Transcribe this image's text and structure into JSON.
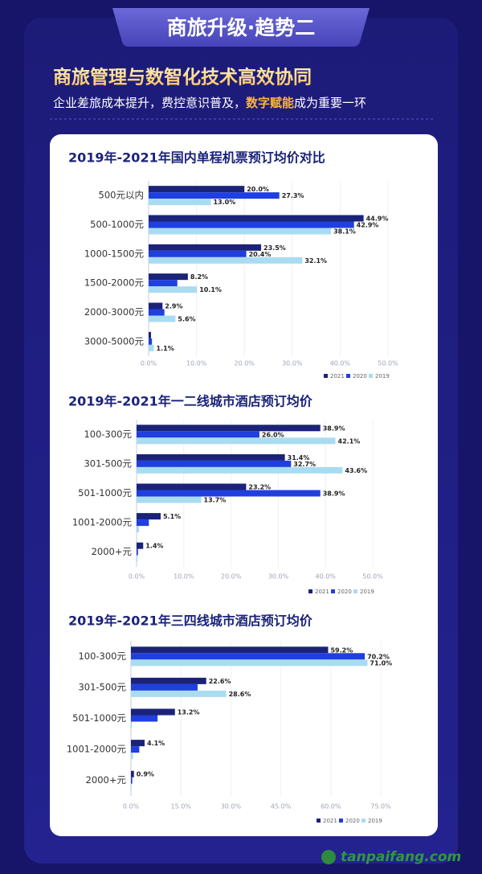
{
  "header": {
    "tab": "商旅升级·趋势二",
    "title": "商旅管理与数智化技术高效协同",
    "subtitle": [
      "企业差旅成本提升，费控意识普及，",
      "数字赋能",
      "成为重要一环"
    ]
  },
  "chart_data": [
    {
      "type": "bar",
      "orientation": "horizontal",
      "title": "2019年-2021年国内单程机票预订均价对比",
      "categories": [
        "500元以内",
        "500-1000元",
        "1000-1500元",
        "1500-2000元",
        "2000-3000元",
        "3000-5000元"
      ],
      "series": [
        {
          "name": "2021",
          "color": "#1b2379",
          "values": [
            20.0,
            44.9,
            23.5,
            8.2,
            2.9,
            0.5
          ],
          "value_labels": [
            "20.0%",
            "44.9%",
            "23.5%",
            "8.2%",
            "2.9%",
            null
          ]
        },
        {
          "name": "2020",
          "color": "#1f3fe0",
          "values": [
            27.3,
            42.9,
            20.4,
            6.0,
            3.3,
            0.7
          ],
          "value_labels": [
            "27.3%",
            "42.9%",
            "20.4%",
            null,
            null,
            null
          ]
        },
        {
          "name": "2019",
          "color": "#a9dcf0",
          "values": [
            13.0,
            38.1,
            32.1,
            10.1,
            5.6,
            1.1
          ],
          "value_labels": [
            "13.0%",
            "38.1%",
            "32.1%",
            "10.1%",
            "5.6%",
            "1.1%"
          ]
        }
      ],
      "xlim": [
        0,
        50
      ],
      "xticks": [
        {
          "value": 0,
          "label": "0.0%"
        },
        {
          "value": 10,
          "label": "10.0%"
        },
        {
          "value": 20,
          "label": "20.0%"
        },
        {
          "value": 30,
          "label": "30.0%"
        },
        {
          "value": 40,
          "label": "40.0%"
        },
        {
          "value": 50,
          "label": "50.0%"
        }
      ],
      "grid": true,
      "legend": "bottom-right"
    },
    {
      "type": "bar",
      "orientation": "horizontal",
      "title": "2019年-2021年一二线城市酒店预订均价",
      "categories": [
        "100-300元",
        "301-500元",
        "501-1000元",
        "1001-2000元",
        "2000+元"
      ],
      "series": [
        {
          "name": "2021",
          "color": "#1b2379",
          "values": [
            38.9,
            31.4,
            23.2,
            5.1,
            1.4
          ],
          "value_labels": [
            "38.9%",
            "31.4%",
            "23.2%",
            "5.1%",
            "1.4%"
          ]
        },
        {
          "name": "2020",
          "color": "#1f3fe0",
          "values": [
            26.0,
            32.7,
            38.9,
            2.6,
            0.3
          ],
          "value_labels": [
            "26.0%",
            "32.7%",
            "38.9%",
            null,
            null
          ]
        },
        {
          "name": "2019",
          "color": "#a9dcf0",
          "values": [
            42.1,
            43.6,
            13.7,
            0.5,
            0.2
          ],
          "value_labels": [
            "42.1%",
            "43.6%",
            "13.7%",
            null,
            null
          ]
        }
      ],
      "xlim": [
        0,
        50
      ],
      "xticks": [
        {
          "value": 0,
          "label": "0.0%"
        },
        {
          "value": 10,
          "label": "10.0%"
        },
        {
          "value": 20,
          "label": "20.0%"
        },
        {
          "value": 30,
          "label": "30.0%"
        },
        {
          "value": 40,
          "label": "40.0%"
        },
        {
          "value": 50,
          "label": "50.0%"
        }
      ],
      "grid": true,
      "legend": "bottom-right"
    },
    {
      "type": "bar",
      "orientation": "horizontal",
      "title": "2019年-2021年三四线城市酒店预订均价",
      "categories": [
        "100-300元",
        "301-500元",
        "501-1000元",
        "1001-2000元",
        "2000+元"
      ],
      "series": [
        {
          "name": "2021",
          "color": "#1b2379",
          "values": [
            59.2,
            22.6,
            13.2,
            4.1,
            0.9
          ],
          "value_labels": [
            "59.2%",
            "22.6%",
            "13.2%",
            "4.1%",
            "0.9%"
          ]
        },
        {
          "name": "2020",
          "color": "#1f3fe0",
          "values": [
            70.2,
            20.0,
            8.0,
            2.5,
            0.4
          ],
          "value_labels": [
            "70.2%",
            null,
            null,
            null,
            null
          ]
        },
        {
          "name": "2019",
          "color": "#a9dcf0",
          "values": [
            71.0,
            28.6,
            0.3,
            0.6,
            0.2
          ],
          "value_labels": [
            "71.0%",
            "28.6%",
            null,
            null,
            null
          ]
        }
      ],
      "xlim": [
        0,
        75
      ],
      "xticks": [
        {
          "value": 0,
          "label": "0.0%"
        },
        {
          "value": 15,
          "label": "15.0%"
        },
        {
          "value": 30,
          "label": "30.0%"
        },
        {
          "value": 45,
          "label": "45.0%"
        },
        {
          "value": 60,
          "label": "60.0%"
        },
        {
          "value": 75,
          "label": "75.0%"
        }
      ],
      "grid": true,
      "legend": "bottom-right"
    }
  ],
  "footer": {
    "watermark": "tanpaifang.com"
  }
}
